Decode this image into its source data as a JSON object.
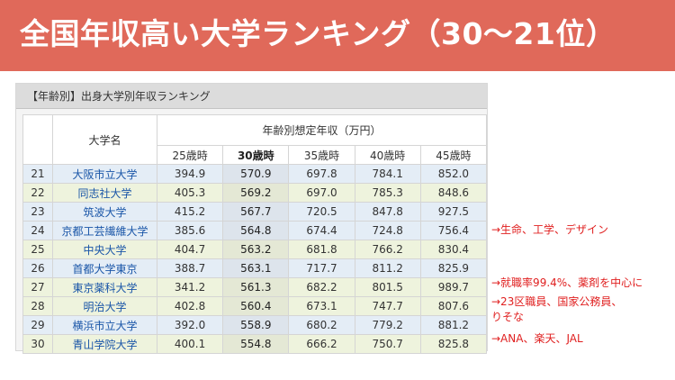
{
  "banner": {
    "title": "全国年収高い大学ランキング（30〜21位）",
    "color": "#e0695a"
  },
  "panel_title": "【年齢別】出身大学別年収ランキング",
  "table": {
    "header_name": "大学名",
    "header_group": "年齢別想定年収（万円）",
    "age_headers": [
      "25歳時",
      "30歳時",
      "35歳時",
      "40歳時",
      "45歳時"
    ],
    "rows": [
      {
        "rank": "21",
        "name": "大阪市立大学",
        "v25": "394.9",
        "v30": "570.9",
        "v35": "697.8",
        "v40": "784.1",
        "v45": "852.0"
      },
      {
        "rank": "22",
        "name": "同志社大学",
        "v25": "405.3",
        "v30": "569.2",
        "v35": "697.0",
        "v40": "785.3",
        "v45": "848.6"
      },
      {
        "rank": "23",
        "name": "筑波大学",
        "v25": "415.2",
        "v30": "567.7",
        "v35": "720.5",
        "v40": "847.8",
        "v45": "927.5"
      },
      {
        "rank": "24",
        "name": "京都工芸繊維大学",
        "v25": "385.6",
        "v30": "564.8",
        "v35": "674.4",
        "v40": "724.8",
        "v45": "756.4"
      },
      {
        "rank": "25",
        "name": "中央大学",
        "v25": "404.7",
        "v30": "563.2",
        "v35": "681.8",
        "v40": "766.2",
        "v45": "830.4"
      },
      {
        "rank": "26",
        "name": "首都大学東京",
        "v25": "388.7",
        "v30": "563.1",
        "v35": "717.7",
        "v40": "811.2",
        "v45": "825.9"
      },
      {
        "rank": "27",
        "name": "東京薬科大学",
        "v25": "341.2",
        "v30": "561.3",
        "v35": "682.2",
        "v40": "801.5",
        "v45": "989.7"
      },
      {
        "rank": "28",
        "name": "明治大学",
        "v25": "402.8",
        "v30": "560.4",
        "v35": "673.1",
        "v40": "747.7",
        "v45": "807.6"
      },
      {
        "rank": "29",
        "name": "横浜市立大学",
        "v25": "392.0",
        "v30": "558.9",
        "v35": "680.2",
        "v40": "779.2",
        "v45": "881.2"
      },
      {
        "rank": "30",
        "name": "青山学院大学",
        "v25": "400.1",
        "v30": "554.8",
        "v35": "666.2",
        "v40": "750.7",
        "v45": "825.8"
      }
    ]
  },
  "notes": {
    "n24": "→生命、工学、デザイン",
    "n27": "→就職率99.4%、薬剤を中心に",
    "n28_line1": "→23区職員、国家公務員、",
    "n28_line2": "りそな",
    "n30": "→ANA、楽天、JAL"
  },
  "colors": {
    "note": "#e02020",
    "name_link": "#1a56a8",
    "row_blue": "#e4edf6",
    "row_green": "#eef3dd"
  }
}
